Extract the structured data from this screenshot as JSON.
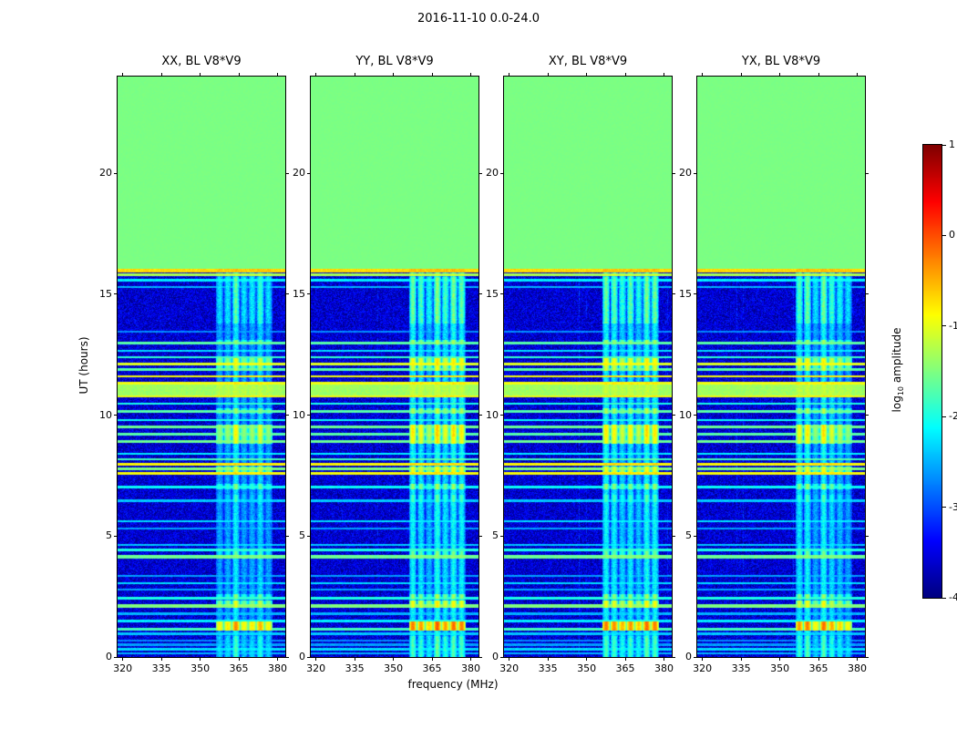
{
  "chart_data": {
    "type": "heatmap",
    "title": "2016-11-10 0.0-24.0",
    "xlabel": "frequency (MHz)",
    "ylabel": "UT (hours)",
    "panels": [
      {
        "title": "XX, BL V8*V9"
      },
      {
        "title": "YY, BL V8*V9"
      },
      {
        "title": "XY, BL V8*V9"
      },
      {
        "title": "YX, BL V8*V9"
      }
    ],
    "xlim": [
      318,
      383
    ],
    "ylim": [
      0,
      24
    ],
    "x_ticks": [
      320,
      335,
      350,
      365,
      380
    ],
    "y_ticks": [
      0,
      5,
      10,
      15,
      20
    ],
    "colorbar": {
      "label_pre": "log",
      "label_sub": "10",
      "label_post": " amplitude",
      "ticks": [
        1,
        0,
        -1,
        -2,
        -3,
        -4
      ],
      "vmin": -4,
      "vmax": 1,
      "colormap": "jet"
    },
    "background_value": -3.6,
    "no_data": {
      "t_start": 16.05,
      "t_end": 24,
      "value": -1.52
    },
    "rfi_band": {
      "f_start": 356,
      "f_end": 378,
      "column_period_mhz": 3.15,
      "enhanced_intervals": [
        {
          "t0": 0.0,
          "t1": 0.85,
          "add": 0.3
        },
        {
          "t0": 13.8,
          "t1": 15.7,
          "add": 0.45
        }
      ]
    },
    "h_stripes": [
      {
        "t": 0.15,
        "h": 0.1,
        "v": -2.5,
        "scope": "all"
      },
      {
        "t": 0.32,
        "h": 0.1,
        "v": -2.3,
        "scope": "all"
      },
      {
        "t": 0.5,
        "h": 0.1,
        "v": -2.6,
        "scope": "all"
      },
      {
        "t": 0.68,
        "h": 0.08,
        "v": -2.7,
        "scope": "all"
      },
      {
        "t": 0.35,
        "h": 0.75,
        "v": -2.1,
        "scope": "band"
      },
      {
        "t": 0.95,
        "h": 0.1,
        "v": -2.4,
        "scope": "all"
      },
      {
        "t": 1.15,
        "h": 0.14,
        "v": -1.8,
        "scope": "all"
      },
      {
        "t": 1.28,
        "h": 0.4,
        "v": -0.45,
        "scope": "band"
      },
      {
        "t": 1.5,
        "h": 0.1,
        "v": -2.2,
        "scope": "all"
      },
      {
        "t": 1.78,
        "h": 0.1,
        "v": -2.5,
        "scope": "all"
      },
      {
        "t": 2.1,
        "h": 0.16,
        "v": -1.5,
        "scope": "all"
      },
      {
        "t": 2.18,
        "h": 0.28,
        "v": -1.15,
        "scope": "band"
      },
      {
        "t": 2.42,
        "h": 0.1,
        "v": -2.0,
        "scope": "all"
      },
      {
        "t": 2.52,
        "h": 0.18,
        "v": -1.6,
        "scope": "band"
      },
      {
        "t": 2.8,
        "h": 0.08,
        "v": -2.6,
        "scope": "all"
      },
      {
        "t": 3.05,
        "h": 0.1,
        "v": -2.3,
        "scope": "all"
      },
      {
        "t": 3.35,
        "h": 0.08,
        "v": -2.6,
        "scope": "all"
      },
      {
        "t": 4.15,
        "h": 0.14,
        "v": -1.6,
        "scope": "all"
      },
      {
        "t": 4.22,
        "h": 0.3,
        "v": -1.8,
        "scope": "band"
      },
      {
        "t": 4.42,
        "h": 0.1,
        "v": -2.0,
        "scope": "all"
      },
      {
        "t": 4.65,
        "h": 0.08,
        "v": -2.4,
        "scope": "all"
      },
      {
        "t": 5.3,
        "h": 0.08,
        "v": -2.6,
        "scope": "all"
      },
      {
        "t": 5.62,
        "h": 0.1,
        "v": -2.3,
        "scope": "all"
      },
      {
        "t": 6.45,
        "h": 0.1,
        "v": -2.4,
        "scope": "all"
      },
      {
        "t": 6.55,
        "h": 0.3,
        "v": -2.0,
        "scope": "band"
      },
      {
        "t": 7.02,
        "h": 0.12,
        "v": -2.1,
        "scope": "all"
      },
      {
        "t": 7.05,
        "h": 0.25,
        "v": -1.6,
        "scope": "band"
      },
      {
        "t": 7.58,
        "h": 0.1,
        "v": -0.9,
        "scope": "all"
      },
      {
        "t": 7.72,
        "h": 0.3,
        "v": -1.2,
        "scope": "band"
      },
      {
        "t": 7.78,
        "h": 0.1,
        "v": -1.5,
        "scope": "all"
      },
      {
        "t": 7.98,
        "h": 0.1,
        "v": -0.85,
        "scope": "all"
      },
      {
        "t": 8.18,
        "h": 0.1,
        "v": -1.8,
        "scope": "all"
      },
      {
        "t": 8.4,
        "h": 0.08,
        "v": -2.2,
        "scope": "all"
      },
      {
        "t": 8.92,
        "h": 0.12,
        "v": -1.6,
        "scope": "all"
      },
      {
        "t": 8.95,
        "h": 0.3,
        "v": -1.1,
        "scope": "band"
      },
      {
        "t": 9.22,
        "h": 0.12,
        "v": -1.7,
        "scope": "all"
      },
      {
        "t": 9.35,
        "h": 0.5,
        "v": -1.0,
        "scope": "band"
      },
      {
        "t": 9.52,
        "h": 0.12,
        "v": -1.6,
        "scope": "all"
      },
      {
        "t": 9.8,
        "h": 0.1,
        "v": -2.1,
        "scope": "all"
      },
      {
        "t": 10.15,
        "h": 0.12,
        "v": -1.7,
        "scope": "all"
      },
      {
        "t": 10.18,
        "h": 0.22,
        "v": -1.5,
        "scope": "band"
      },
      {
        "t": 10.48,
        "h": 0.1,
        "v": -2.0,
        "scope": "all"
      },
      {
        "t": 10.78,
        "h": 0.08,
        "v": -0.95,
        "scope": "all"
      },
      {
        "t": 11.05,
        "h": 0.5,
        "v": -1.35,
        "scope": "all"
      },
      {
        "t": 11.32,
        "h": 0.08,
        "v": -0.95,
        "scope": "all"
      },
      {
        "t": 11.62,
        "h": 0.08,
        "v": -0.9,
        "scope": "all"
      },
      {
        "t": 11.88,
        "h": 0.1,
        "v": -1.7,
        "scope": "all"
      },
      {
        "t": 11.95,
        "h": 0.22,
        "v": -1.3,
        "scope": "band"
      },
      {
        "t": 12.12,
        "h": 0.12,
        "v": -1.05,
        "scope": "all"
      },
      {
        "t": 12.2,
        "h": 0.3,
        "v": -1.1,
        "scope": "band"
      },
      {
        "t": 12.4,
        "h": 0.08,
        "v": -1.9,
        "scope": "all"
      },
      {
        "t": 12.65,
        "h": 0.08,
        "v": -2.3,
        "scope": "all"
      },
      {
        "t": 12.98,
        "h": 0.12,
        "v": -1.7,
        "scope": "all"
      },
      {
        "t": 13.02,
        "h": 0.2,
        "v": -1.6,
        "scope": "band"
      },
      {
        "t": 13.45,
        "h": 0.08,
        "v": -2.7,
        "scope": "all"
      },
      {
        "t": 15.3,
        "h": 0.08,
        "v": -2.5,
        "scope": "all"
      },
      {
        "t": 15.58,
        "h": 0.1,
        "v": -2.2,
        "scope": "all"
      },
      {
        "t": 15.82,
        "h": 0.12,
        "v": -1.3,
        "scope": "all"
      },
      {
        "t": 15.98,
        "h": 0.18,
        "v": -0.7,
        "scope": "all"
      }
    ]
  }
}
